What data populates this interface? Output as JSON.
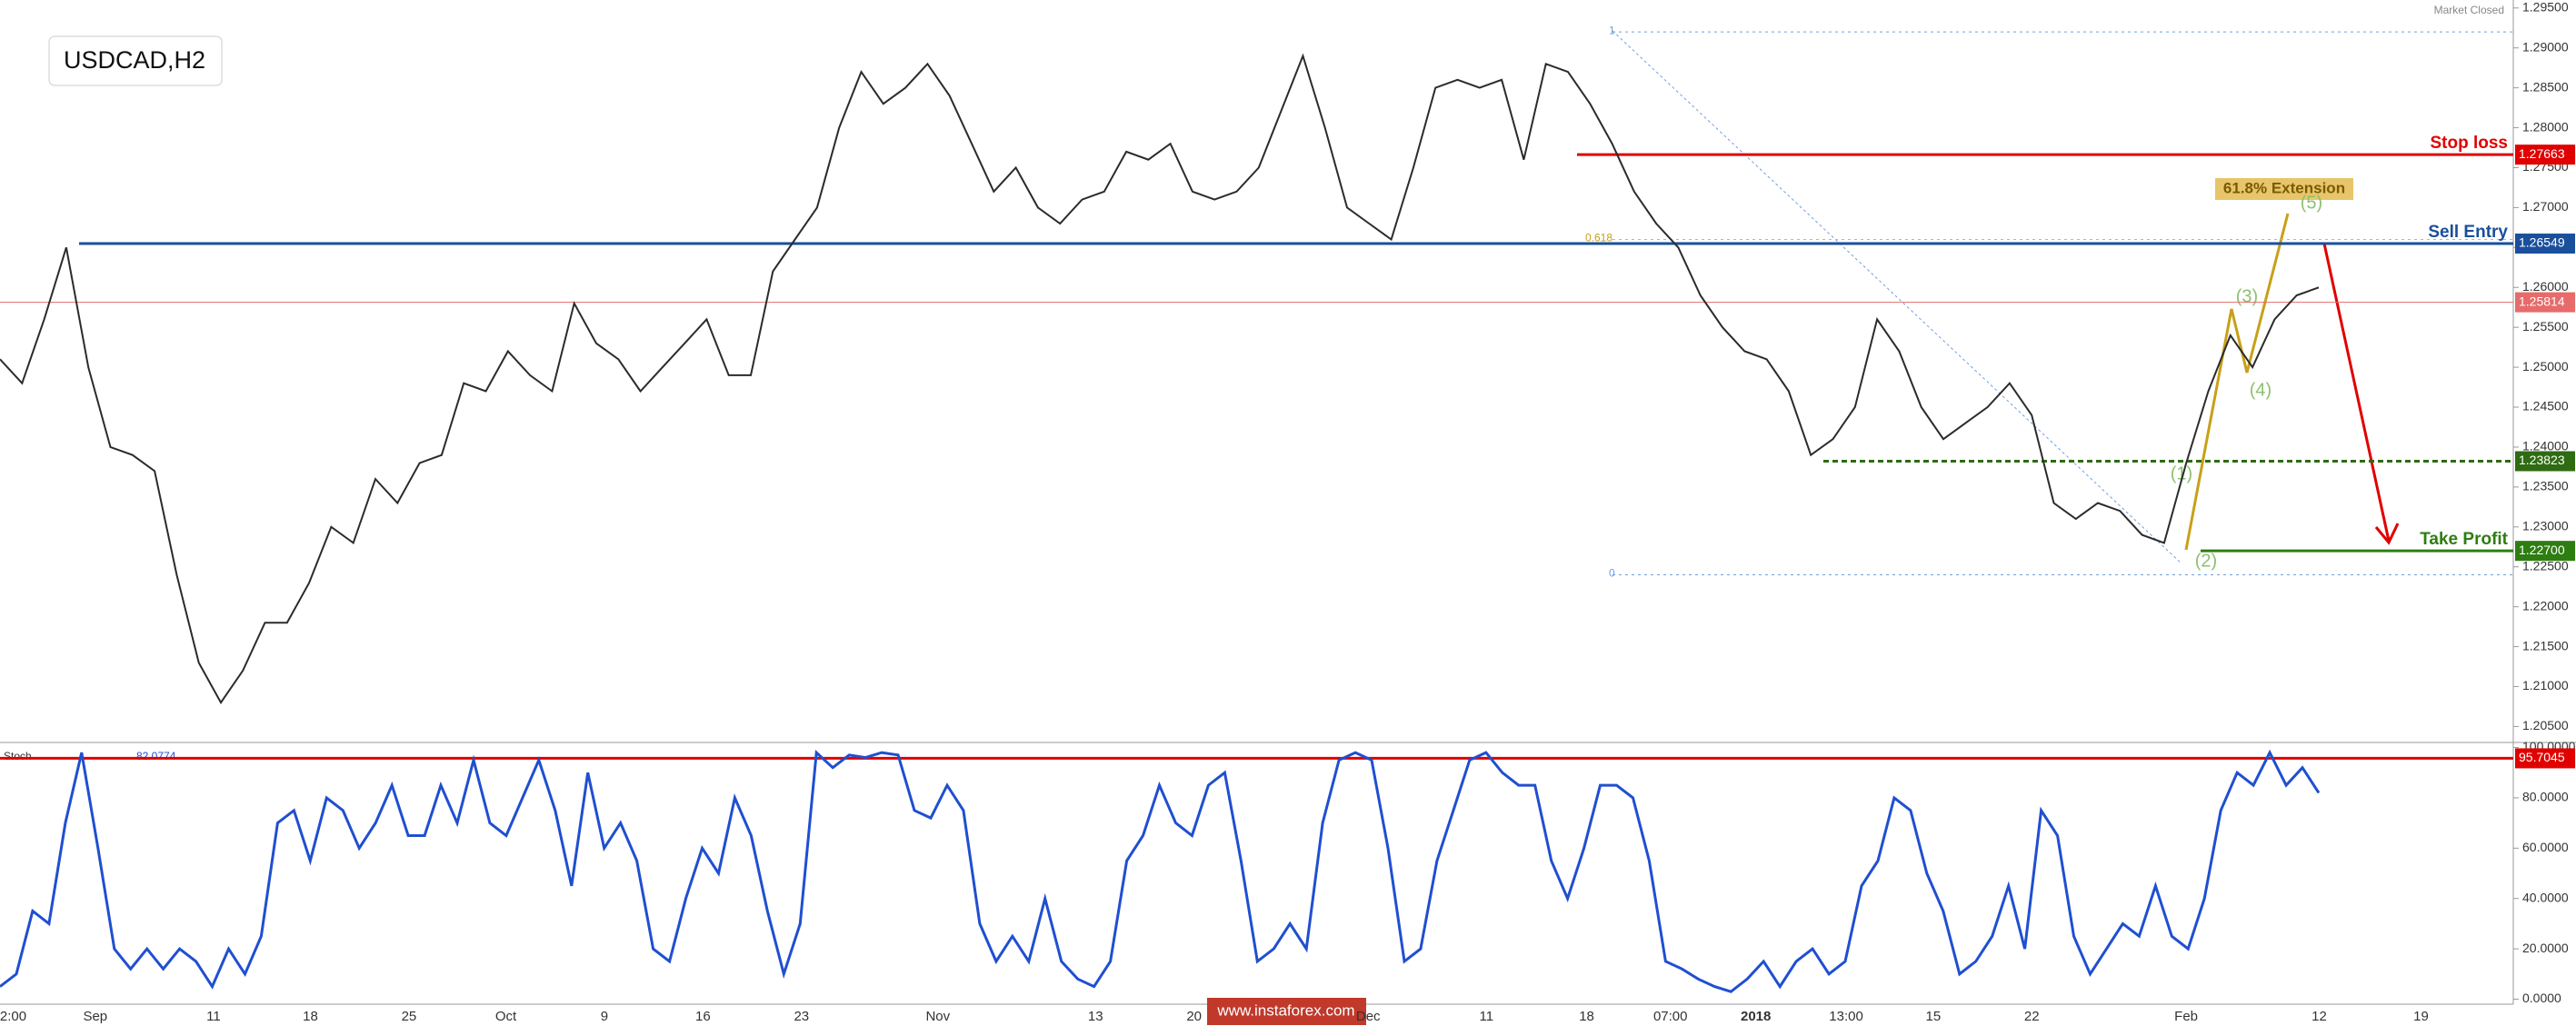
{
  "chart_data": [
    {
      "type": "line",
      "title": "USDCAD,H2",
      "status": "Market Closed",
      "color": "#2b2b2b",
      "x_labels": [
        "2:00",
        "Sep",
        "11",
        "18",
        "25",
        "Oct",
        "9",
        "16",
        "23",
        "Nov",
        "13",
        "20",
        "Dec",
        "11",
        "18",
        "07:00",
        "2018",
        "13:00",
        "15",
        "22",
        "Feb",
        "12",
        "19"
      ],
      "values": [
        1.251,
        1.248,
        1.256,
        1.265,
        1.25,
        1.24,
        1.239,
        1.237,
        1.224,
        1.213,
        1.208,
        1.212,
        1.218,
        1.218,
        1.223,
        1.23,
        1.228,
        1.236,
        1.233,
        1.238,
        1.239,
        1.248,
        1.247,
        1.252,
        1.249,
        1.247,
        1.258,
        1.253,
        1.251,
        1.247,
        1.25,
        1.253,
        1.256,
        1.249,
        1.249,
        1.262,
        1.266,
        1.27,
        1.28,
        1.287,
        1.283,
        1.285,
        1.288,
        1.284,
        1.278,
        1.272,
        1.275,
        1.27,
        1.268,
        1.271,
        1.272,
        1.277,
        1.276,
        1.278,
        1.272,
        1.271,
        1.272,
        1.275,
        1.282,
        1.289,
        1.28,
        1.27,
        1.268,
        1.266,
        1.275,
        1.285,
        1.286,
        1.285,
        1.286,
        1.276,
        1.288,
        1.287,
        1.283,
        1.278,
        1.272,
        1.268,
        1.265,
        1.259,
        1.255,
        1.252,
        1.251,
        1.247,
        1.239,
        1.241,
        1.245,
        1.256,
        1.252,
        1.245,
        1.241,
        1.243,
        1.245,
        1.248,
        1.244,
        1.233,
        1.231,
        1.233,
        1.232,
        1.229,
        1.228,
        1.238,
        1.247,
        1.254,
        1.25,
        1.256,
        1.259,
        1.26
      ],
      "ylim": [
        1.203,
        1.296
      ],
      "yticks": [
        {
          "value": 1.205,
          "label": "1.20500"
        },
        {
          "value": 1.21,
          "label": "1.21000"
        },
        {
          "value": 1.215,
          "label": "1.21500"
        },
        {
          "value": 1.22,
          "label": "1.22000"
        },
        {
          "value": 1.225,
          "label": "1.22500"
        },
        {
          "value": 1.23,
          "label": "1.23000"
        },
        {
          "value": 1.235,
          "label": "1.23500"
        },
        {
          "value": 1.24,
          "label": "1.24000"
        },
        {
          "value": 1.245,
          "label": "1.24500"
        },
        {
          "value": 1.25,
          "label": "1.25000"
        },
        {
          "value": 1.255,
          "label": "1.25500"
        },
        {
          "value": 1.26,
          "label": "1.26000"
        },
        {
          "value": 1.265,
          "label": "1.26500"
        },
        {
          "value": 1.27,
          "label": "1.27000"
        },
        {
          "value": 1.275,
          "label": "1.27500"
        },
        {
          "value": 1.28,
          "label": "1.28000"
        },
        {
          "value": 1.285,
          "label": "1.28500"
        },
        {
          "value": 1.29,
          "label": "1.29000"
        },
        {
          "value": 1.295,
          "label": "1.29500"
        }
      ],
      "levels": [
        {
          "label": "Stop loss",
          "value": 1.27663,
          "color": "#e00000"
        },
        {
          "label": "Sell Entry",
          "value": 1.26549,
          "color": "#1a4f9c"
        },
        {
          "value": 1.25814,
          "color": "#e86a6a"
        },
        {
          "value": 1.23823,
          "color": "#2e6b12"
        },
        {
          "label": "Take Profit",
          "value": 1.227,
          "value_label": "1.22700",
          "color": "#2e7d12"
        }
      ],
      "fib": [
        {
          "label": "1",
          "value": 1.292
        },
        {
          "label": "0.618",
          "value": 1.266
        },
        {
          "label": "0",
          "value": 1.224
        }
      ],
      "extension_label": "61.8% Extension",
      "waves": [
        "(1)",
        "(2)",
        "(3)",
        "(4)",
        "(5)"
      ],
      "watermark": "www.instaforex.com"
    },
    {
      "type": "line",
      "title": "Stoch",
      "current": "82.0774",
      "color": "#1f4fd1",
      "values": [
        5,
        10,
        35,
        30,
        70,
        98,
        60,
        20,
        12,
        20,
        12,
        20,
        15,
        5,
        20,
        10,
        25,
        70,
        75,
        55,
        80,
        75,
        60,
        70,
        85,
        65,
        65,
        85,
        70,
        95,
        70,
        65,
        80,
        95,
        75,
        45,
        90,
        60,
        70,
        55,
        20,
        15,
        40,
        60,
        50,
        80,
        65,
        35,
        10,
        30,
        98,
        92,
        97,
        96,
        98,
        97,
        75,
        72,
        85,
        75,
        30,
        15,
        25,
        15,
        40,
        15,
        8,
        5,
        15,
        55,
        65,
        85,
        70,
        65,
        85,
        90,
        55,
        15,
        20,
        30,
        20,
        70,
        95,
        98,
        95,
        60,
        15,
        20,
        55,
        75,
        95,
        98,
        90,
        85,
        85,
        55,
        40,
        60,
        85,
        85,
        80,
        55,
        15,
        12,
        8,
        5,
        3,
        8,
        15,
        5,
        15,
        20,
        10,
        15,
        45,
        55,
        80,
        75,
        50,
        35,
        10,
        15,
        25,
        45,
        20,
        75,
        65,
        25,
        10,
        20,
        30,
        25,
        45,
        25,
        20,
        40,
        75,
        90,
        85,
        98,
        85,
        92,
        82
      ],
      "ylim": [
        -2,
        102
      ],
      "yticks": [
        {
          "value": 0,
          "label": "0.0000"
        },
        {
          "value": 20,
          "label": "20.0000"
        },
        {
          "value": 40,
          "label": "40.0000"
        },
        {
          "value": 60,
          "label": "60.0000"
        },
        {
          "value": 80,
          "label": "80.0000"
        },
        {
          "value": 100,
          "label": "100.0000"
        }
      ],
      "level": 95.7045,
      "level_color": "#e00000"
    }
  ]
}
